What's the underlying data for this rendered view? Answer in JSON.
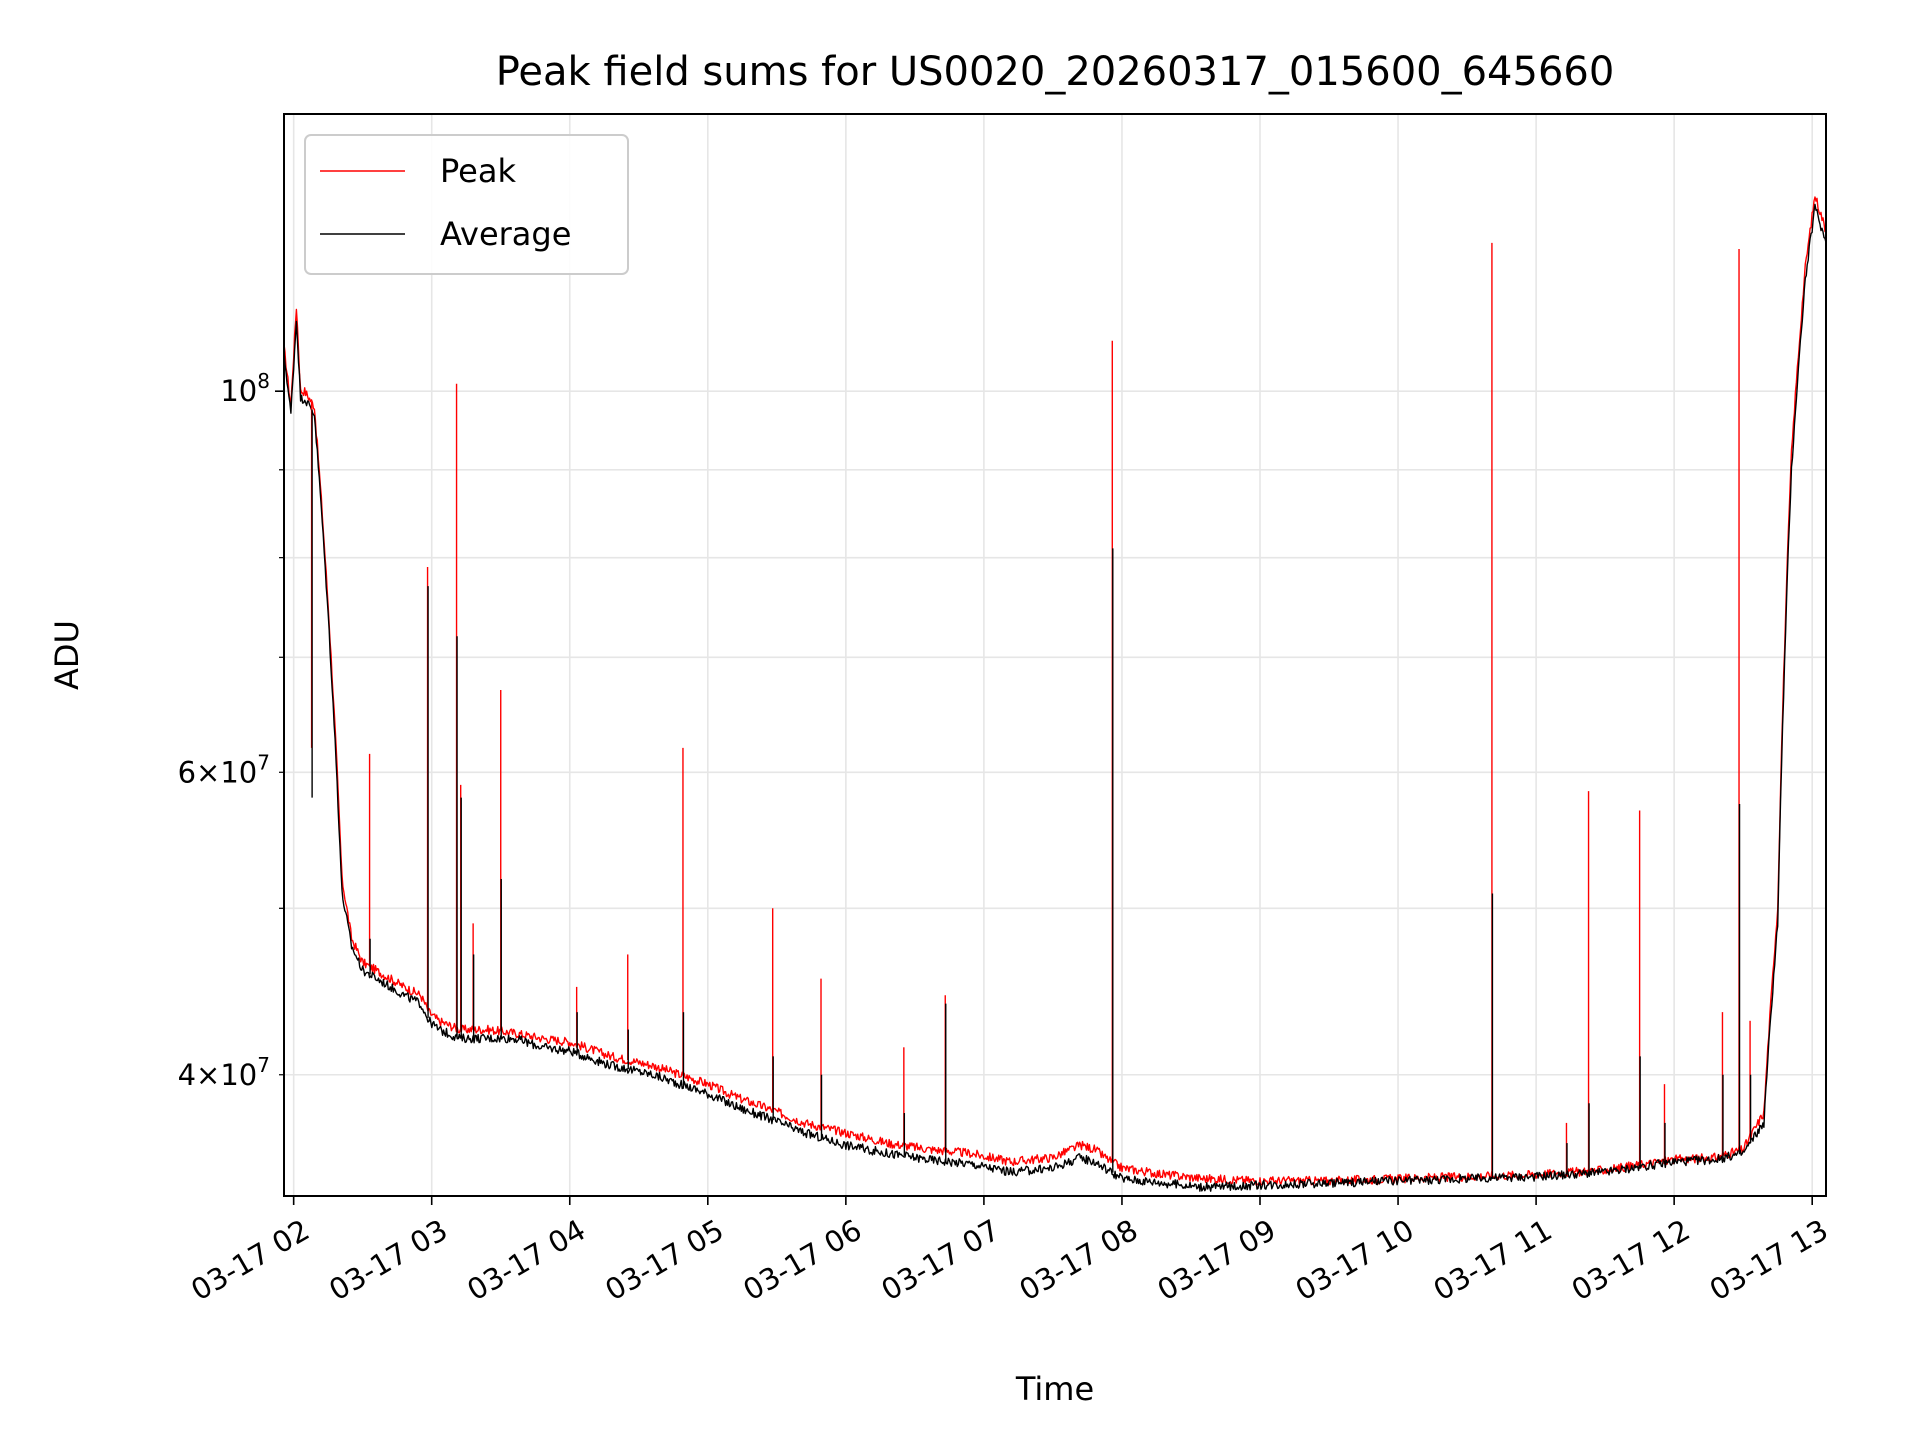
{
  "chart_data": {
    "type": "line",
    "title": "Peak field sums for US0020_20260317_015600_645660",
    "xlabel": "Time",
    "ylabel": "ADU",
    "yscale": "log",
    "ylim": [
      34000000,
      145000000
    ],
    "xlim_hours": [
      1.93,
      13.1
    ],
    "x_ticks": [
      {
        "hour": 2,
        "label": "03-17 02"
      },
      {
        "hour": 3,
        "label": "03-17 03"
      },
      {
        "hour": 4,
        "label": "03-17 04"
      },
      {
        "hour": 5,
        "label": "03-17 05"
      },
      {
        "hour": 6,
        "label": "03-17 06"
      },
      {
        "hour": 7,
        "label": "03-17 07"
      },
      {
        "hour": 8,
        "label": "03-17 08"
      },
      {
        "hour": 9,
        "label": "03-17 09"
      },
      {
        "hour": 10,
        "label": "03-17 10"
      },
      {
        "hour": 11,
        "label": "03-17 11"
      },
      {
        "hour": 12,
        "label": "03-17 12"
      },
      {
        "hour": 13,
        "label": "03-17 13"
      }
    ],
    "y_major_ticks": [
      {
        "value": 100000000,
        "base": "10",
        "exp": "8"
      }
    ],
    "y_minor_ticks": [
      {
        "value": 40000000,
        "mant": "4",
        "base": "10",
        "exp": "7",
        "labeled": true
      },
      {
        "value": 50000000,
        "labeled": false
      },
      {
        "value": 60000000,
        "mant": "6",
        "base": "10",
        "exp": "7",
        "labeled": true
      },
      {
        "value": 70000000,
        "labeled": false
      },
      {
        "value": 80000000,
        "labeled": false
      },
      {
        "value": 90000000,
        "labeled": false
      }
    ],
    "times_symbol": "×",
    "grid": true,
    "legend": {
      "position": "top-left",
      "entries": [
        {
          "name": "Peak",
          "color": "#ff0000"
        },
        {
          "name": "Average",
          "color": "#000000"
        }
      ]
    },
    "series": [
      {
        "name": "Peak",
        "color": "#ff0000",
        "hours": [
          1.93,
          1.98,
          2.02,
          2.05,
          2.08,
          2.15,
          2.25,
          2.35,
          2.42,
          2.5,
          2.6,
          2.7,
          2.8,
          2.92,
          2.98,
          3.05,
          3.2,
          3.4,
          3.6,
          3.8,
          4.0,
          4.3,
          4.6,
          4.8,
          5.0,
          5.15,
          5.25,
          5.45,
          5.7,
          6.0,
          6.3,
          6.6,
          6.9,
          7.2,
          7.5,
          7.7,
          7.8,
          7.9,
          8.0,
          8.3,
          8.6,
          9.0,
          9.5,
          10.0,
          10.5,
          11.0,
          11.5,
          11.8,
          12.0,
          12.3,
          12.5,
          12.65,
          12.75,
          12.85,
          12.95,
          13.02,
          13.1
        ],
        "values": [
          106,
          98,
          112,
          100,
          100,
          98,
          75,
          52,
          48,
          46.5,
          46,
          45.5,
          45,
          44.5,
          43.5,
          43,
          42.5,
          42.5,
          42.3,
          42,
          41.8,
          41,
          40.5,
          40,
          39.5,
          39,
          38.7,
          38.2,
          37.5,
          37,
          36.5,
          36.2,
          36,
          35.6,
          35.8,
          36.4,
          36.2,
          35.7,
          35.3,
          35,
          34.8,
          34.7,
          34.7,
          34.8,
          34.9,
          35,
          35.2,
          35.5,
          35.7,
          35.8,
          36.2,
          38,
          50,
          92,
          118,
          130,
          124
        ]
      },
      {
        "name": "Average",
        "color": "#000000",
        "hours": [
          1.93,
          1.98,
          2.02,
          2.05,
          2.08,
          2.15,
          2.25,
          2.35,
          2.42,
          2.5,
          2.6,
          2.7,
          2.8,
          2.92,
          2.98,
          3.05,
          3.2,
          3.4,
          3.6,
          3.8,
          4.0,
          4.3,
          4.6,
          4.8,
          5.0,
          5.15,
          5.25,
          5.45,
          5.7,
          6.0,
          6.3,
          6.6,
          6.9,
          7.2,
          7.5,
          7.7,
          7.8,
          7.9,
          8.0,
          8.3,
          8.6,
          9.0,
          9.5,
          10.0,
          10.5,
          11.0,
          11.5,
          11.8,
          12.0,
          12.3,
          12.5,
          12.65,
          12.75,
          12.85,
          12.95,
          13.02,
          13.1
        ],
        "values": [
          105,
          97,
          110,
          99,
          99,
          97,
          74,
          51,
          47.5,
          46,
          45.5,
          45,
          44.5,
          44,
          43,
          42.5,
          42,
          42,
          42,
          41.5,
          41.3,
          40.5,
          40,
          39.5,
          39,
          38.5,
          38.2,
          37.7,
          37,
          36.4,
          36,
          35.7,
          35.5,
          35.1,
          35.3,
          35.8,
          35.6,
          35.2,
          34.8,
          34.6,
          34.4,
          34.5,
          34.6,
          34.7,
          34.8,
          34.9,
          35.1,
          35.4,
          35.6,
          35.7,
          36,
          37.5,
          49,
          90,
          116,
          128,
          122
        ]
      }
    ],
    "spikes": [
      {
        "hour": 2.13,
        "peak": 62,
        "average": 58
      },
      {
        "hour": 2.55,
        "peak": 61.5,
        "average": 48
      },
      {
        "hour": 2.97,
        "peak": 79,
        "average": 77
      },
      {
        "hour": 3.18,
        "peak": 101,
        "average": 72
      },
      {
        "hour": 3.21,
        "peak": 59,
        "average": 58
      },
      {
        "hour": 3.3,
        "peak": 49,
        "average": 47
      },
      {
        "hour": 3.5,
        "peak": 67,
        "average": 52
      },
      {
        "hour": 4.05,
        "peak": 45,
        "average": 43.5
      },
      {
        "hour": 4.42,
        "peak": 47,
        "average": 42.5
      },
      {
        "hour": 4.82,
        "peak": 62,
        "average": 43.5
      },
      {
        "hour": 5.47,
        "peak": 50,
        "average": 41
      },
      {
        "hour": 5.82,
        "peak": 45.5,
        "average": 40
      },
      {
        "hour": 6.42,
        "peak": 41.5,
        "average": 38
      },
      {
        "hour": 6.72,
        "peak": 44.5,
        "average": 44
      },
      {
        "hour": 7.93,
        "peak": 107,
        "average": 81
      },
      {
        "hour": 10.68,
        "peak": 122,
        "average": 51
      },
      {
        "hour": 11.22,
        "peak": 37.5,
        "average": 36.5
      },
      {
        "hour": 11.38,
        "peak": 58.5,
        "average": 38.5
      },
      {
        "hour": 11.75,
        "peak": 57,
        "average": 41
      },
      {
        "hour": 11.93,
        "peak": 39.5,
        "average": 37.5
      },
      {
        "hour": 12.35,
        "peak": 43.5,
        "average": 40
      },
      {
        "hour": 12.47,
        "peak": 121,
        "average": 57.5
      },
      {
        "hour": 12.55,
        "peak": 43,
        "average": 40
      }
    ]
  }
}
